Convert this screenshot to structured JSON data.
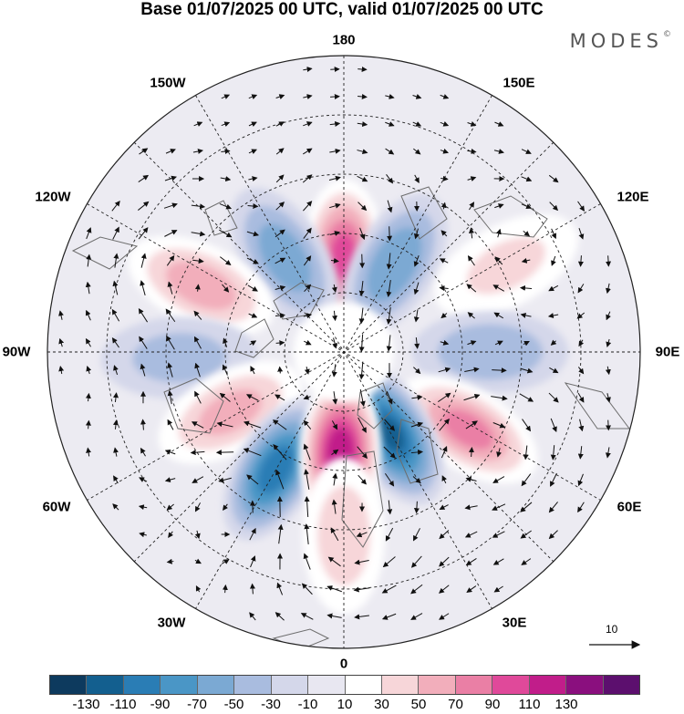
{
  "title": "Base 01/07/2025 00 UTC, valid 01/07/2025 00 UTC",
  "brand": {
    "name": "MODES",
    "mark": "©"
  },
  "longitude_labels": {
    "top": "180",
    "top_left": "150W",
    "top_right": "150E",
    "upper_left": "120W",
    "upper_right": "120E",
    "left": "90W",
    "right": "90E",
    "lower_left": "60W",
    "lower_right": "60E",
    "bottom_left": "30W",
    "bottom_right": "30E",
    "bottom": "0"
  },
  "reference_vector": {
    "value": "10",
    "icon": "right-arrow-icon"
  },
  "colorbar": {
    "ticks": [
      "-130",
      "-110",
      "-90",
      "-70",
      "-50",
      "-30",
      "-10",
      "10",
      "30",
      "50",
      "70",
      "90",
      "110",
      "130"
    ],
    "colors": [
      "#0d3a5e",
      "#135f8f",
      "#2a7db5",
      "#4a96c6",
      "#7ba9d3",
      "#a9bcdf",
      "#d4d7ea",
      "#e8e7f1",
      "#ffffff",
      "#f7d6d9",
      "#f2aebb",
      "#ea7fa5",
      "#e0499a",
      "#c11d8a",
      "#8a0f7e",
      "#5c0f6e"
    ]
  },
  "map": {
    "projection": "north polar stereographic",
    "grid": true,
    "coastlines": true,
    "wind_vectors": true,
    "anomalies": [
      {
        "lon": 180,
        "lat": 60,
        "value": 95
      },
      {
        "lon": 150,
        "lat": 58,
        "value": -65
      },
      {
        "lon": -148,
        "lat": 55,
        "value": -60
      },
      {
        "lon": 118,
        "lat": 35,
        "value": 30
      },
      {
        "lon": -115,
        "lat": 42,
        "value": 60
      },
      {
        "lon": 90,
        "lat": 45,
        "value": -45
      },
      {
        "lon": -88,
        "lat": 40,
        "value": -35
      },
      {
        "lon": 58,
        "lat": 45,
        "value": 75
      },
      {
        "lon": -62,
        "lat": 50,
        "value": 55
      },
      {
        "lon": 30,
        "lat": 60,
        "value": -110
      },
      {
        "lon": -30,
        "lat": 48,
        "value": -100
      },
      {
        "lon": -2,
        "lat": 58,
        "value": 125
      },
      {
        "lon": 0,
        "lat": 35,
        "value": 40
      }
    ]
  }
}
